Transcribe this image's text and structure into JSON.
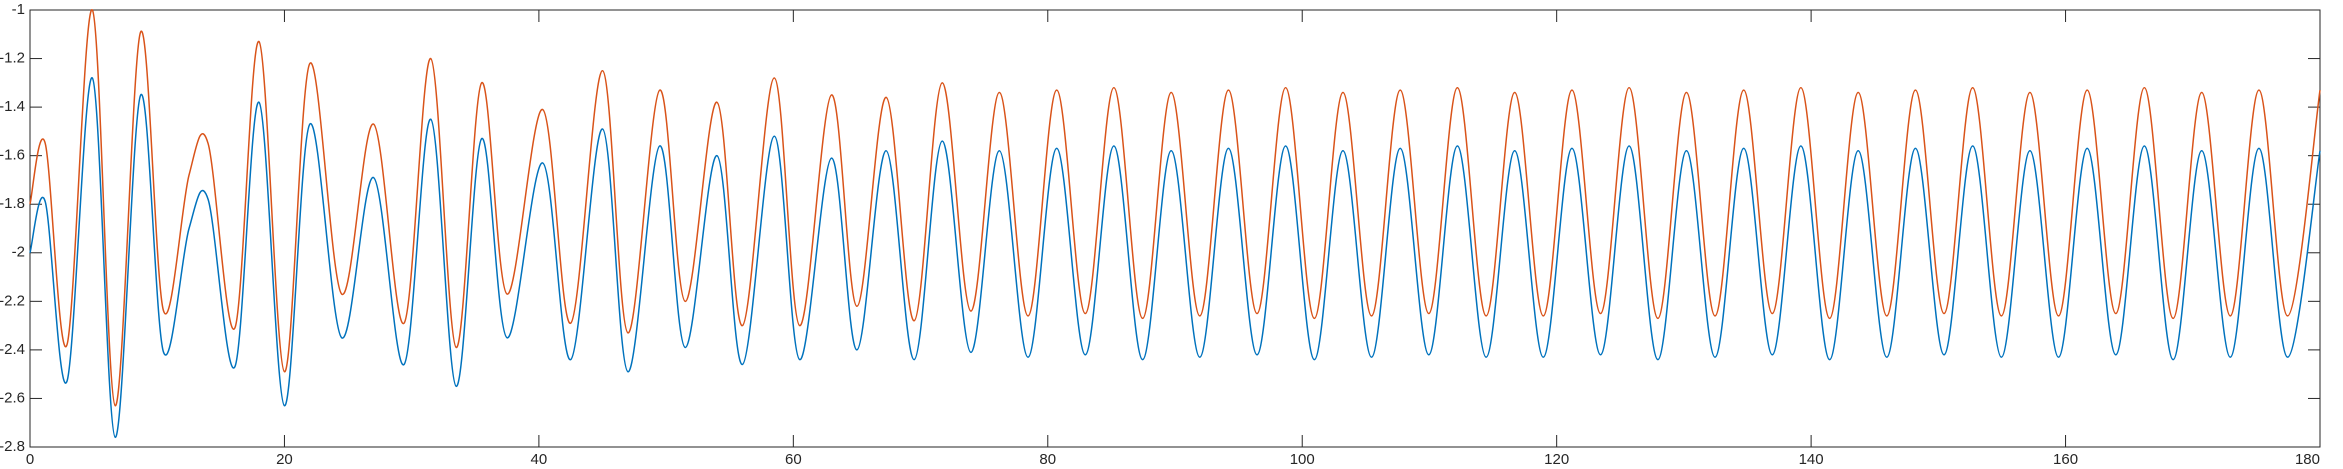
{
  "chart_data": {
    "type": "line",
    "x": [
      0,
      1.2,
      2.9,
      4.9,
      6.7,
      8.7,
      10.5,
      12.5,
      14,
      16.1,
      18,
      20,
      22,
      24.5,
      27,
      29.4,
      31.5,
      33.5,
      35.5,
      37.5,
      40.3,
      42.5,
      45,
      47,
      49.5,
      51.5,
      54,
      56,
      58.5,
      60.5,
      63,
      65,
      67.3,
      69.5,
      71.7,
      73.95,
      76.2,
      78.45,
      80.7,
      82.95,
      85.2,
      87.45,
      89.7,
      91.95,
      94.2,
      96.45,
      98.7,
      100.95,
      103.2,
      105.45,
      107.7,
      109.95,
      112.2,
      114.45,
      116.7,
      118.95,
      121.2,
      123.45,
      125.7,
      127.95,
      130.2,
      132.45,
      134.7,
      136.95,
      139.2,
      141.45,
      143.7,
      145.95,
      148.2,
      150.45,
      152.7,
      154.95,
      157.2,
      159.45,
      161.7,
      163.95,
      166.2,
      168.45,
      170.7,
      172.95,
      175.2,
      177.45,
      180
    ],
    "series": [
      {
        "color": "#0072bd",
        "values": [
          -2.0,
          -1.79,
          -2.53,
          -1.28,
          -2.76,
          -1.35,
          -2.41,
          -1.9,
          -1.78,
          -2.47,
          -1.38,
          -2.63,
          -1.47,
          -2.35,
          -1.69,
          -2.46,
          -1.45,
          -2.55,
          -1.53,
          -2.35,
          -1.63,
          -2.44,
          -1.49,
          -2.49,
          -1.56,
          -2.39,
          -1.6,
          -2.46,
          -1.52,
          -2.44,
          -1.61,
          -2.4,
          -1.58,
          -2.44,
          -1.54,
          -2.41,
          -1.58,
          -2.43,
          -1.57,
          -2.42,
          -1.56,
          -2.44,
          -1.58,
          -2.43,
          -1.57,
          -2.42,
          -1.56,
          -2.44,
          -1.58,
          -2.43,
          -1.57,
          -2.42,
          -1.56,
          -2.43,
          -1.58,
          -2.43,
          -1.57,
          -2.42,
          -1.56,
          -2.44,
          -1.58,
          -2.43,
          -1.57,
          -2.42,
          -1.56,
          -2.44,
          -1.58,
          -2.43,
          -1.57,
          -2.42,
          -1.56,
          -2.43,
          -1.58,
          -2.43,
          -1.57,
          -2.42,
          -1.56,
          -2.44,
          -1.58,
          -2.43,
          -1.57,
          -2.43,
          -1.58
        ]
      },
      {
        "color": "#d95319",
        "values": [
          -1.8,
          -1.55,
          -2.38,
          -1.0,
          -2.63,
          -1.09,
          -2.24,
          -1.68,
          -1.55,
          -2.31,
          -1.13,
          -2.49,
          -1.22,
          -2.17,
          -1.47,
          -2.29,
          -1.2,
          -2.39,
          -1.3,
          -2.17,
          -1.41,
          -2.29,
          -1.25,
          -2.33,
          -1.33,
          -2.2,
          -1.38,
          -2.3,
          -1.28,
          -2.3,
          -1.35,
          -2.22,
          -1.36,
          -2.28,
          -1.3,
          -2.24,
          -1.34,
          -2.26,
          -1.33,
          -2.25,
          -1.32,
          -2.27,
          -1.34,
          -2.26,
          -1.33,
          -2.25,
          -1.32,
          -2.27,
          -1.34,
          -2.26,
          -1.33,
          -2.25,
          -1.32,
          -2.26,
          -1.34,
          -2.26,
          -1.33,
          -2.25,
          -1.32,
          -2.27,
          -1.34,
          -2.26,
          -1.33,
          -2.25,
          -1.32,
          -2.27,
          -1.34,
          -2.26,
          -1.33,
          -2.25,
          -1.32,
          -2.26,
          -1.34,
          -2.26,
          -1.33,
          -2.25,
          -1.32,
          -2.27,
          -1.34,
          -2.26,
          -1.33,
          -2.26,
          -1.33
        ]
      }
    ],
    "xlim": [
      0,
      180
    ],
    "xticks": [
      0,
      20,
      40,
      60,
      80,
      100,
      120,
      140,
      160,
      180
    ],
    "ylim": [
      -2.8,
      -1
    ],
    "yticks": [
      -2.8,
      -2.6,
      -2.4,
      -2.2,
      -2,
      -1.8,
      -1.6,
      -1.4,
      -1.2,
      -1
    ],
    "grid": false
  }
}
